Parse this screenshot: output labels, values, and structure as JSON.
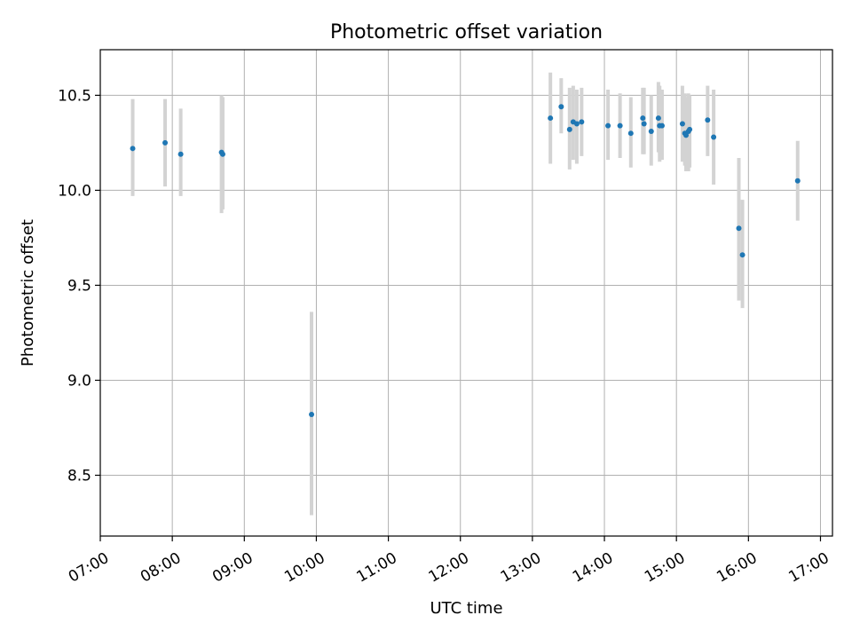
{
  "chart_data": {
    "type": "scatter",
    "title": "Photometric offset variation",
    "xlabel": "UTC time",
    "ylabel": "Photometric offset",
    "xlim": [
      "07:00",
      "17:10"
    ],
    "ylim": [
      8.18,
      10.74
    ],
    "grid": true,
    "x_ticks": [
      "07:00",
      "08:00",
      "09:00",
      "10:00",
      "11:00",
      "12:00",
      "13:00",
      "14:00",
      "15:00",
      "16:00",
      "17:00"
    ],
    "y_ticks": [
      8.5,
      9.0,
      9.5,
      10.0,
      10.5
    ],
    "y_tick_labels": [
      "8.5",
      "9.0",
      "9.5",
      "10.0",
      "10.5"
    ],
    "series": [
      {
        "marker_color": "#1f77b4",
        "errorbar_color": "#d3d3d3",
        "points": [
          {
            "x": "07:27",
            "y": 10.22,
            "lo": 9.97,
            "hi": 10.48
          },
          {
            "x": "07:54",
            "y": 10.25,
            "lo": 10.02,
            "hi": 10.48
          },
          {
            "x": "08:07",
            "y": 10.19,
            "lo": 9.97,
            "hi": 10.43
          },
          {
            "x": "08:41",
            "y": 10.2,
            "lo": 9.88,
            "hi": 10.5
          },
          {
            "x": "08:42",
            "y": 10.19,
            "lo": 9.9,
            "hi": 10.49
          },
          {
            "x": "09:56",
            "y": 8.82,
            "lo": 8.29,
            "hi": 9.36
          },
          {
            "x": "13:15",
            "y": 10.38,
            "lo": 10.14,
            "hi": 10.62
          },
          {
            "x": "13:24",
            "y": 10.44,
            "lo": 10.3,
            "hi": 10.59
          },
          {
            "x": "13:31",
            "y": 10.32,
            "lo": 10.11,
            "hi": 10.54
          },
          {
            "x": "13:34",
            "y": 10.36,
            "lo": 10.16,
            "hi": 10.55
          },
          {
            "x": "13:37",
            "y": 10.35,
            "lo": 10.14,
            "hi": 10.53
          },
          {
            "x": "13:41",
            "y": 10.36,
            "lo": 10.18,
            "hi": 10.54
          },
          {
            "x": "14:03",
            "y": 10.34,
            "lo": 10.16,
            "hi": 10.53
          },
          {
            "x": "14:13",
            "y": 10.34,
            "lo": 10.17,
            "hi": 10.51
          },
          {
            "x": "14:22",
            "y": 10.3,
            "lo": 10.12,
            "hi": 10.49
          },
          {
            "x": "14:32",
            "y": 10.38,
            "lo": 10.19,
            "hi": 10.54
          },
          {
            "x": "14:33",
            "y": 10.35,
            "lo": 10.19,
            "hi": 10.54
          },
          {
            "x": "14:39",
            "y": 10.31,
            "lo": 10.13,
            "hi": 10.5
          },
          {
            "x": "14:45",
            "y": 10.38,
            "lo": 10.2,
            "hi": 10.57
          },
          {
            "x": "14:46",
            "y": 10.34,
            "lo": 10.15,
            "hi": 10.55
          },
          {
            "x": "14:48",
            "y": 10.34,
            "lo": 10.16,
            "hi": 10.53
          },
          {
            "x": "15:05",
            "y": 10.35,
            "lo": 10.15,
            "hi": 10.55
          },
          {
            "x": "15:07",
            "y": 10.3,
            "lo": 10.13,
            "hi": 10.51
          },
          {
            "x": "15:08",
            "y": 10.29,
            "lo": 10.1,
            "hi": 10.49
          },
          {
            "x": "15:10",
            "y": 10.31,
            "lo": 10.1,
            "hi": 10.51
          },
          {
            "x": "15:11",
            "y": 10.32,
            "lo": 10.12,
            "hi": 10.5
          },
          {
            "x": "15:26",
            "y": 10.37,
            "lo": 10.18,
            "hi": 10.55
          },
          {
            "x": "15:31",
            "y": 10.28,
            "lo": 10.03,
            "hi": 10.53
          },
          {
            "x": "15:52",
            "y": 9.8,
            "lo": 9.42,
            "hi": 10.17
          },
          {
            "x": "15:55",
            "y": 9.66,
            "lo": 9.38,
            "hi": 9.95
          },
          {
            "x": "16:41",
            "y": 10.05,
            "lo": 9.84,
            "hi": 10.26
          }
        ]
      }
    ]
  }
}
